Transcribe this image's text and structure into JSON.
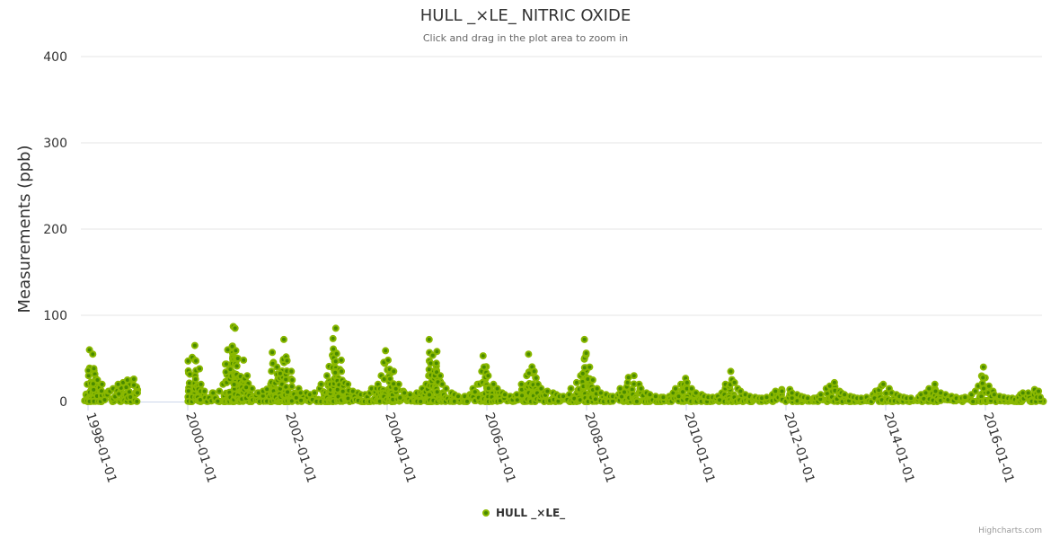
{
  "chart_data": {
    "type": "scatter",
    "title": "HULL _×LE_ NITRIC OXIDE",
    "subtitle": "Click and drag in the plot area to zoom in",
    "xlabel": "",
    "ylabel": "Measurements (ppb)",
    "ylim": [
      0,
      400
    ],
    "yticks": [
      0,
      100,
      200,
      300,
      400
    ],
    "xticks": [
      "1998-01-01",
      "2000-01-01",
      "2002-01-01",
      "2004-01-01",
      "2006-01-01",
      "2008-01-01",
      "2010-01-01",
      "2012-01-01",
      "2014-01-01",
      "2016-01-01"
    ],
    "grid": true,
    "legend_position": "bottom-center",
    "series": [
      {
        "name": "HULL _×LE_",
        "color": "#8ab800",
        "monthly_max_by_year": [
          {
            "year": 1997,
            "values": [
              null,
              null,
              null,
              null,
              null,
              null,
              null,
              null,
              null,
              null,
              null,
              20
            ]
          },
          {
            "year": 1998,
            "values": [
              60,
              55,
              25,
              20,
              12,
              12,
              15,
              20,
              22,
              25,
              25,
              26
            ]
          },
          {
            "year": 1999,
            "values": [
              null,
              null,
              null,
              null,
              null,
              null,
              null,
              null,
              null,
              null,
              null,
              null
            ]
          },
          {
            "year": 2000,
            "values": [
              47,
              65,
              38,
              20,
              12,
              10,
              10,
              12,
              20,
              60,
              87,
              85
            ]
          },
          {
            "year": 2001,
            "values": [
              50,
              48,
              30,
              15,
              10,
              10,
              12,
              20,
              57,
              40,
              47,
              72
            ]
          },
          {
            "year": 2002,
            "values": [
              35,
              25,
              15,
              10,
              10,
              8,
              10,
              15,
              20,
              30,
              73,
              85
            ]
          },
          {
            "year": 2003,
            "values": [
              48,
              35,
              20,
              12,
              10,
              8,
              8,
              10,
              15,
              20,
              30,
              59
            ]
          },
          {
            "year": 2004,
            "values": [
              48,
              35,
              20,
              12,
              10,
              8,
              8,
              10,
              15,
              30,
              72,
              58
            ]
          },
          {
            "year": 2005,
            "values": [
              30,
              20,
              15,
              10,
              8,
              6,
              6,
              8,
              15,
              20,
              35,
              53
            ]
          },
          {
            "year": 2006,
            "values": [
              30,
              20,
              15,
              10,
              8,
              6,
              6,
              8,
              20,
              30,
              55,
              35
            ]
          },
          {
            "year": 2007,
            "values": [
              20,
              15,
              12,
              10,
              8,
              6,
              6,
              8,
              15,
              22,
              30,
              72
            ]
          },
          {
            "year": 2008,
            "values": [
              40,
              25,
              15,
              10,
              8,
              6,
              6,
              8,
              15,
              22,
              28,
              30
            ]
          },
          {
            "year": 2009,
            "values": [
              20,
              15,
              10,
              8,
              6,
              5,
              5,
              6,
              10,
              15,
              20,
              27
            ]
          },
          {
            "year": 2010,
            "values": [
              22,
              15,
              10,
              8,
              6,
              5,
              5,
              6,
              10,
              20,
              35,
              22
            ]
          },
          {
            "year": 2011,
            "values": [
              15,
              12,
              8,
              6,
              5,
              4,
              4,
              5,
              8,
              12,
              14,
              12
            ]
          },
          {
            "year": 2012,
            "values": [
              14,
              10,
              8,
              6,
              5,
              4,
              4,
              5,
              8,
              15,
              18,
              22
            ]
          },
          {
            "year": 2013,
            "values": [
              12,
              10,
              8,
              6,
              5,
              4,
              4,
              5,
              8,
              12,
              18,
              20
            ]
          },
          {
            "year": 2014,
            "values": [
              15,
              10,
              8,
              6,
              5,
              4,
              4,
              5,
              8,
              10,
              15,
              20
            ]
          },
          {
            "year": 2015,
            "values": [
              12,
              10,
              8,
              6,
              5,
              4,
              4,
              5,
              8,
              12,
              18,
              40
            ]
          },
          {
            "year": 2016,
            "values": [
              18,
              12,
              8,
              6,
              5,
              4,
              4,
              5,
              8,
              10,
              10,
              14
            ]
          },
          {
            "year": 2017,
            "values": [
              12,
              5,
              null,
              null,
              null,
              null,
              null,
              null,
              null,
              null,
              null,
              null
            ]
          }
        ]
      }
    ],
    "credits": "Highcharts.com"
  }
}
